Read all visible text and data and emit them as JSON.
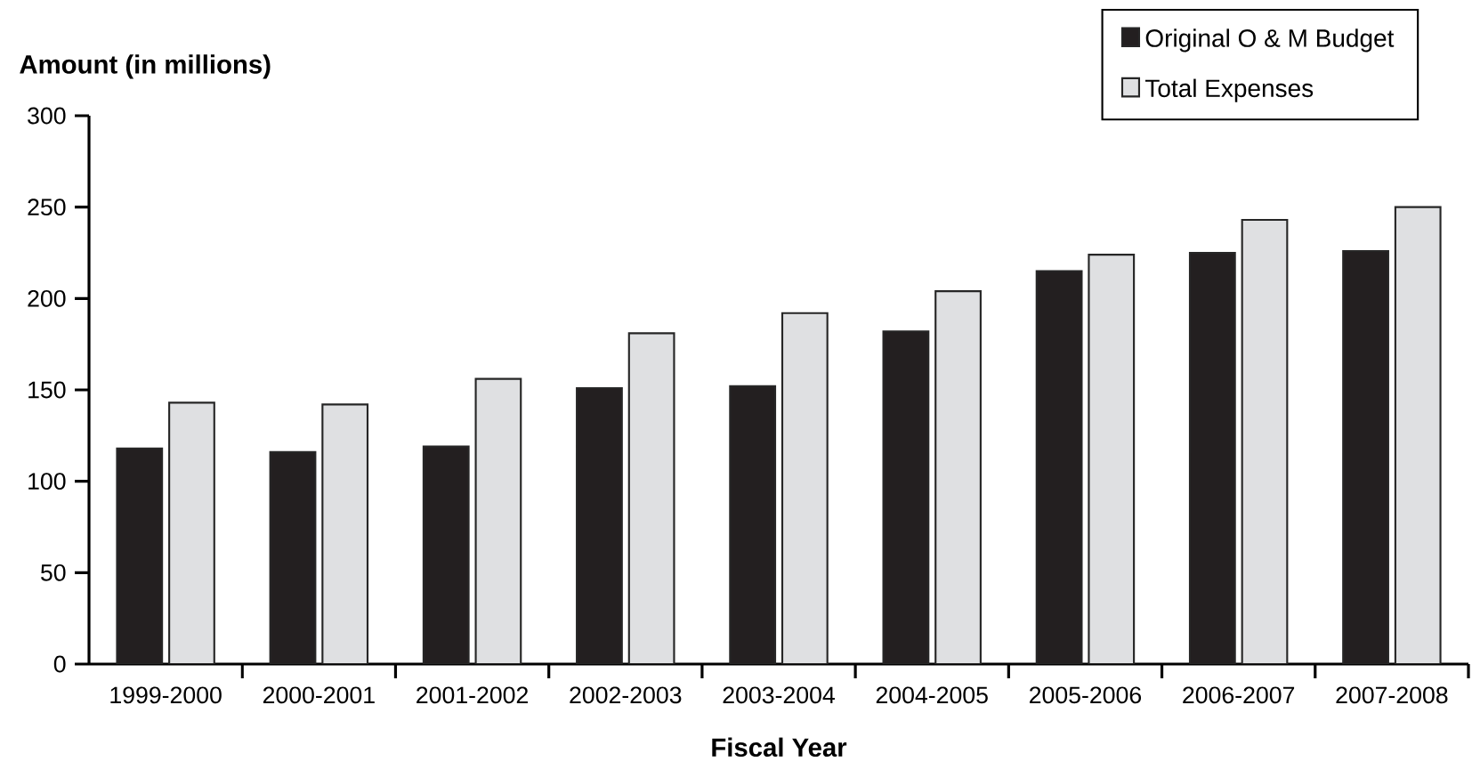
{
  "chart_data": {
    "type": "bar",
    "xlabel": "Fiscal Year",
    "ylabel": "Amount (in millions)",
    "categories": [
      "1999-2000",
      "2000-2001",
      "2001-2002",
      "2002-2003",
      "2003-2004",
      "2004-2005",
      "2005-2006",
      "2006-2007",
      "2007-2008"
    ],
    "series": [
      {
        "name": "Original O & M Budget",
        "color": "#231f20",
        "values": [
          118,
          116,
          119,
          151,
          152,
          182,
          215,
          225,
          226
        ]
      },
      {
        "name": "Total Expenses",
        "color": "#dfe0e2",
        "values": [
          143,
          142,
          156,
          181,
          192,
          204,
          224,
          243,
          250
        ]
      }
    ],
    "ylim": [
      0,
      300
    ],
    "yticks": [
      0,
      50,
      100,
      150,
      200,
      250,
      300
    ],
    "legend": "top right"
  }
}
